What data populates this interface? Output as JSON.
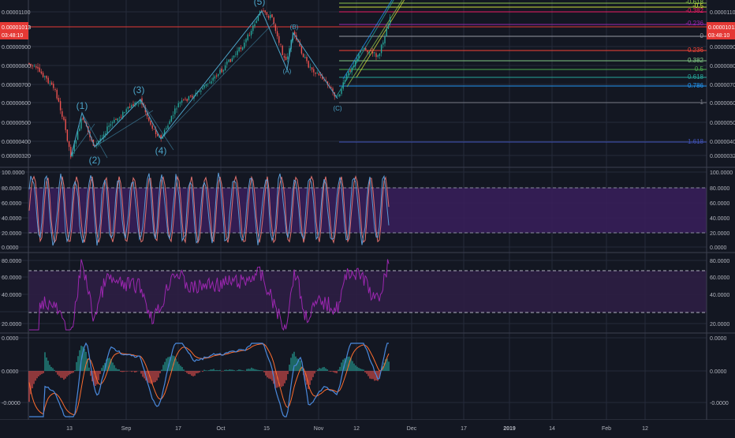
{
  "colors": {
    "background": "#131722",
    "grid": "#262b3a",
    "axis_text": "#b2b5be",
    "candle_up": "#26a69a",
    "candle_down": "#ef5350",
    "wave": "#4ba3c7",
    "stoch_k": "#5b9bd5",
    "stoch_d": "#e0716e",
    "stoch_band": "#3a1f5c",
    "rsi": "#9c27b0",
    "rsi_band": "#2d1e44",
    "macd": "#4a89dc",
    "signal": "#ff6d2e",
    "price_tag": "#e53935"
  },
  "price_axis": {
    "labels": [
      "0.00001100",
      "0.00000900",
      "0.00000800",
      "0.00000700",
      "0.00000600",
      "0.00000500",
      "0.00000400",
      "0.00000320"
    ],
    "current_price": "0.00001013",
    "countdown": "03:48:10"
  },
  "price_axis_left": {
    "labels": [
      "0.00001100",
      "0.00000900",
      "0.00000800",
      "0.00000700",
      "0.00000600",
      "0.00000500",
      "0.00000400",
      "0.00000320"
    ],
    "current_price": "0.00001013",
    "countdown": "03:48:10"
  },
  "waves": {
    "labels": [
      "(1)",
      "(2)",
      "(3)",
      "(4)",
      "(5)",
      "(A)",
      "(B)",
      "(C)"
    ]
  },
  "fib_levels": [
    {
      "label": "-0.618",
      "color": "#8bc34a"
    },
    {
      "label": "-0.5",
      "color": "#cddc39"
    },
    {
      "label": "-0.382",
      "color": "#e91e63"
    },
    {
      "label": "-0.236",
      "color": "#9c27b0"
    },
    {
      "label": "0",
      "color": "#9598a1"
    },
    {
      "label": "0.236",
      "color": "#f44336"
    },
    {
      "label": "0.382",
      "color": "#81c784"
    },
    {
      "label": "0.5",
      "color": "#4caf50"
    },
    {
      "label": "0.618",
      "color": "#26a69a"
    },
    {
      "label": "0.786",
      "color": "#2196f3"
    },
    {
      "label": "1",
      "color": "#787b86"
    },
    {
      "label": "1.618",
      "color": "#3f51b5"
    }
  ],
  "stoch_axis": {
    "labels": [
      "100.0000",
      "80.0000",
      "60.0000",
      "40.0000",
      "20.0000",
      "0.0000"
    ]
  },
  "rsi_axis": {
    "labels": [
      "80.0000",
      "60.0000",
      "40.0000",
      "20.0000"
    ]
  },
  "macd_axis": {
    "labels": [
      "0.0000",
      "0.0000",
      "-0.0000"
    ]
  },
  "time_axis": {
    "labels": [
      "13",
      "Sep",
      "17",
      "Oct",
      "15",
      "Nov",
      "12",
      "Dec",
      "17",
      "2019",
      "14",
      "Feb",
      "12"
    ]
  }
}
